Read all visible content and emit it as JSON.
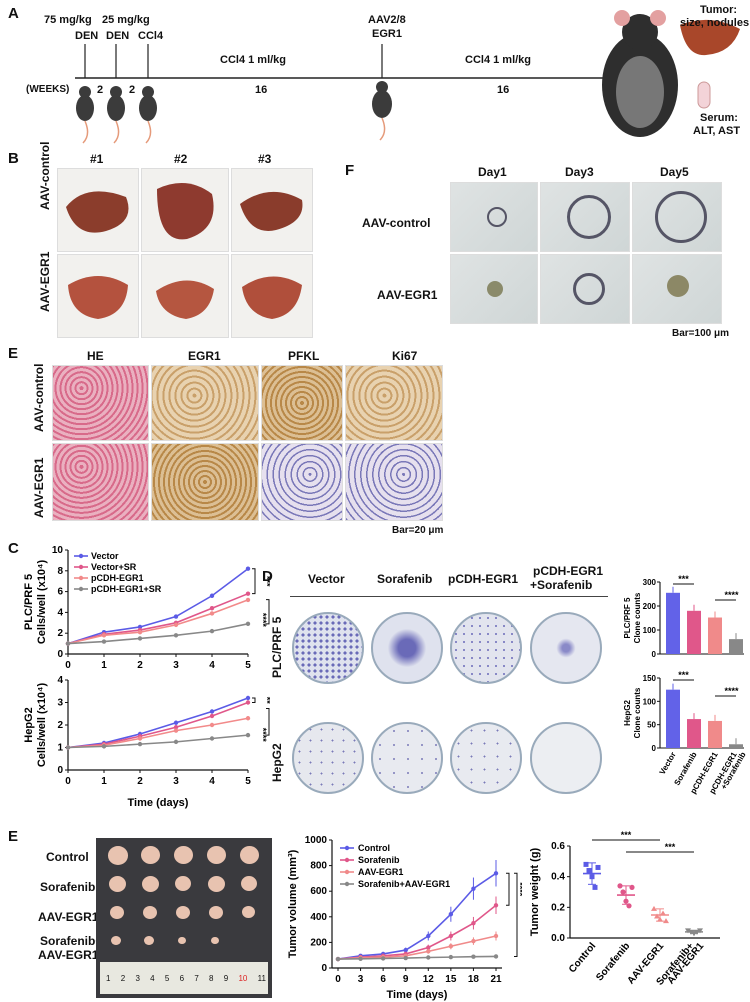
{
  "panelA": {
    "label": "A",
    "dose1": "75 mg/kg",
    "dose2": "25 mg/kg",
    "den1": "DEN",
    "den2": "DEN",
    "ccl4": "CCl4",
    "weeks": "(WEEKS)",
    "w1": "2",
    "w2": "2",
    "seg1": "CCl4 1 ml/kg",
    "seg1w": "16",
    "aav": "AAV2/8",
    "egr1": "EGR1",
    "seg2": "CCl4 1 ml/kg",
    "seg2w": "16",
    "tumor": "Tumor:",
    "tumor2": "size, nodules",
    "serum": "Serum:",
    "serum2": "ALT, AST"
  },
  "panelB": {
    "label": "B",
    "cols": [
      "#1",
      "#2",
      "#3"
    ],
    "rows": [
      "AAV-control",
      "AAV-EGR1"
    ]
  },
  "panelF": {
    "label": "F",
    "cols": [
      "Day1",
      "Day3",
      "Day5"
    ],
    "rows": [
      "AAV-control",
      "AAV-EGR1"
    ],
    "bar": "Bar=100 μm"
  },
  "panelE1": {
    "label": "E",
    "cols": [
      "HE",
      "EGR1",
      "PFKL",
      "Ki67"
    ],
    "rows": [
      "AAV-control",
      "AAV-EGR1"
    ],
    "bar": "Bar=20 μm"
  },
  "panelC": {
    "label": "C",
    "legend": [
      "Vector",
      "Vector+SR",
      "pCDH-EGR1",
      "pCDH-EGR1+SR"
    ],
    "colors": [
      "#5b5be6",
      "#e0578a",
      "#f28a8a",
      "#888888"
    ],
    "xlabel": "Time (days)",
    "chart_data": [
      {
        "type": "line",
        "ylabel": "PLC/PRF 5 Cells/well (x10⁴)",
        "ylab1": "PLC/PRF 5",
        "ylab2": "Cells/well (x10⁴)",
        "x": [
          0,
          1,
          2,
          3,
          4,
          5
        ],
        "ylim": [
          0,
          10
        ],
        "yticks": [
          "0",
          "2",
          "4",
          "6",
          "8",
          "10"
        ],
        "series": [
          {
            "name": "Vector",
            "values": [
              1,
              2.1,
              2.6,
              3.6,
              5.6,
              8.2
            ]
          },
          {
            "name": "Vector+SR",
            "values": [
              1,
              1.9,
              2.3,
              3.0,
              4.4,
              5.8
            ]
          },
          {
            "name": "pCDH-EGR1",
            "values": [
              1,
              1.8,
              2.1,
              2.8,
              3.9,
              5.2
            ]
          },
          {
            "name": "pCDH-EGR1+SR",
            "values": [
              1,
              1.2,
              1.5,
              1.8,
              2.2,
              2.9
            ]
          }
        ],
        "sig": [
          "***",
          "****"
        ]
      },
      {
        "type": "line",
        "ylabel": "HepG2 Cells/well (x10⁴)",
        "ylab1": "HepG2",
        "ylab2": "Cells/well (x10⁴)",
        "x": [
          0,
          1,
          2,
          3,
          4,
          5
        ],
        "ylim": [
          0,
          4
        ],
        "yticks": [
          "0",
          "1",
          "2",
          "3",
          "4"
        ],
        "series": [
          {
            "name": "Vector",
            "values": [
              1,
              1.2,
              1.6,
              2.1,
              2.6,
              3.2
            ]
          },
          {
            "name": "Vector+SR",
            "values": [
              1,
              1.15,
              1.5,
              1.9,
              2.4,
              3.0
            ]
          },
          {
            "name": "pCDH-EGR1",
            "values": [
              1,
              1.1,
              1.4,
              1.75,
              2.0,
              2.3
            ]
          },
          {
            "name": "pCDH-EGR1+SR",
            "values": [
              1,
              1.05,
              1.15,
              1.25,
              1.4,
              1.55
            ]
          }
        ],
        "sig": [
          "**",
          "****"
        ]
      }
    ]
  },
  "panelD": {
    "label": "D",
    "cols": [
      "Vector",
      "Sorafenib",
      "pCDH-EGR1",
      "pCDH-EGR1",
      "+Sorafenib"
    ],
    "rows": [
      "PLC/PRF 5",
      "HepG2"
    ],
    "categories": [
      "Vector",
      "Sorafenib",
      "pCDH-EGR1",
      "pCDH-EGR1",
      "+Sorafenib"
    ],
    "barColors": [
      "#6262e8",
      "#e0578a",
      "#f08a8a",
      "#888888"
    ],
    "chart_data": [
      {
        "type": "bar",
        "ylab1": "PLC/PRF 5",
        "ylab2": "Clone counts",
        "ylim": [
          0,
          300
        ],
        "yticks": [
          "0",
          "100",
          "200",
          "300"
        ],
        "values": [
          255,
          180,
          152,
          62
        ],
        "sig": [
          "***",
          "****"
        ]
      },
      {
        "type": "bar",
        "ylab1": "HepG2",
        "ylab2": "Clone counts",
        "ylim": [
          0,
          150
        ],
        "yticks": [
          "0",
          "50",
          "100",
          "150"
        ],
        "values": [
          125,
          62,
          58,
          8
        ],
        "sig": [
          "***",
          "****"
        ]
      }
    ]
  },
  "panelE2": {
    "label": "E",
    "rows": [
      "Control",
      "Sorafenib",
      "AAV-EGR1",
      "Sorafenib+",
      "AAV-EGR1"
    ],
    "ruler": [
      "1",
      "2",
      "3",
      "4",
      "5",
      "6",
      "7",
      "8",
      "9",
      "10",
      "11"
    ],
    "volume": {
      "type": "line",
      "ylabel": "Tumor volume (mm³)",
      "xlabel": "Time (days)",
      "x": [
        0,
        3,
        6,
        9,
        12,
        15,
        18,
        21
      ],
      "ylim": [
        0,
        1000
      ],
      "yticks": [
        "0",
        "200",
        "400",
        "600",
        "800",
        "1000"
      ],
      "legend": [
        "Control",
        "Sorafenib",
        "AAV-EGR1",
        "Sorafenib+AAV-EGR1"
      ],
      "series": [
        {
          "name": "Control",
          "values": [
            70,
            95,
            110,
            140,
            250,
            420,
            620,
            740
          ]
        },
        {
          "name": "Sorafenib",
          "values": [
            70,
            85,
            95,
            110,
            160,
            250,
            350,
            490
          ]
        },
        {
          "name": "AAV-EGR1",
          "values": [
            70,
            80,
            85,
            95,
            130,
            170,
            210,
            250
          ]
        },
        {
          "name": "Sorafenib+AAV-EGR1",
          "values": [
            70,
            72,
            75,
            78,
            82,
            85,
            88,
            90
          ]
        }
      ],
      "sig": [
        "****",
        "****"
      ]
    },
    "weight": {
      "type": "scatter",
      "ylabel": "Tumor weight (g)",
      "ylim": [
        0,
        0.6
      ],
      "yticks": [
        "0.0",
        "0.2",
        "0.4",
        "0.6"
      ],
      "categories": [
        "Control",
        "Sorafenib",
        "AAV-EGR1",
        "Sorafenib+",
        "AAV-EGR1"
      ],
      "groups": [
        {
          "name": "Control",
          "values": [
            0.48,
            0.44,
            0.4,
            0.33,
            0.46
          ],
          "mean": 0.42
        },
        {
          "name": "Sorafenib",
          "values": [
            0.34,
            0.3,
            0.24,
            0.21,
            0.33
          ],
          "mean": 0.28
        },
        {
          "name": "AAV-EGR1",
          "values": [
            0.19,
            0.14,
            0.12,
            0.16,
            0.11
          ],
          "mean": 0.15
        },
        {
          "name": "Sorafenib+AAV-EGR1",
          "values": [
            0.05,
            0.04,
            0.03,
            0.04,
            0.05
          ],
          "mean": 0.04
        }
      ],
      "sig": [
        "***",
        "***"
      ]
    }
  }
}
